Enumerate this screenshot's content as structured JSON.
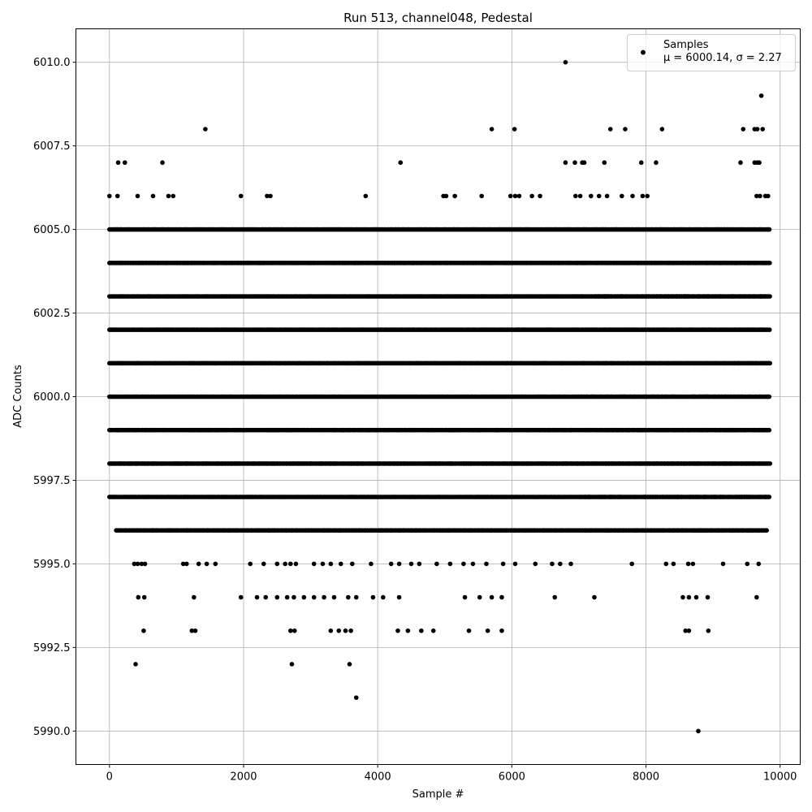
{
  "chart_data": {
    "type": "scatter",
    "title": "Run 513, channel048, Pedestal",
    "xlabel": "Sample #",
    "ylabel": "ADC Counts",
    "xlim": [
      -500,
      10300
    ],
    "ylim": [
      5989,
      6011
    ],
    "xticks": [
      0,
      2000,
      4000,
      6000,
      8000,
      10000
    ],
    "xtick_labels": [
      "0",
      "2000",
      "4000",
      "6000",
      "8000",
      "10000"
    ],
    "yticks": [
      5990.0,
      5992.5,
      5995.0,
      5997.5,
      6000.0,
      6002.5,
      6005.0,
      6007.5,
      6010.0
    ],
    "ytick_labels": [
      "5990.0",
      "5992.5",
      "5995.0",
      "5997.5",
      "6000.0",
      "6002.5",
      "6005.0",
      "6007.5",
      "6010.0"
    ],
    "grid": true,
    "legend_position": "top-right",
    "legend": {
      "series_label": "Samples",
      "stats_label": "μ = 6000.14, σ = 2.27"
    },
    "marker_color": "#000000",
    "series": [
      {
        "name": "Samples",
        "x_range": [
          0,
          9850
        ],
        "level_spans": [
          {
            "y": 6000,
            "from": 0,
            "to": 9850
          },
          {
            "y": 6001,
            "from": 0,
            "to": 9850
          },
          {
            "y": 6002,
            "from": 0,
            "to": 9850
          },
          {
            "y": 5999,
            "from": 0,
            "to": 9850
          },
          {
            "y": 6003,
            "from": 0,
            "to": 9850
          },
          {
            "y": 5998,
            "from": 0,
            "to": 9850
          },
          {
            "y": 6004,
            "from": 0,
            "to": 9850
          },
          {
            "y": 5997,
            "from": 0,
            "to": 9850
          },
          {
            "y": 6005,
            "from": 0,
            "to": 9850
          },
          {
            "y": 5996,
            "from": 100,
            "to": 9800
          }
        ],
        "points": [
          [
            0,
            6006
          ],
          [
            120,
            6006
          ],
          [
            420,
            6006
          ],
          [
            650,
            6006
          ],
          [
            880,
            6006
          ],
          [
            950,
            6006
          ],
          [
            1960,
            6006
          ],
          [
            2350,
            6006
          ],
          [
            2400,
            6006
          ],
          [
            3820,
            6006
          ],
          [
            4980,
            6006
          ],
          [
            5020,
            6006
          ],
          [
            5150,
            6006
          ],
          [
            5550,
            6006
          ],
          [
            5980,
            6006
          ],
          [
            6050,
            6006
          ],
          [
            6110,
            6006
          ],
          [
            6300,
            6006
          ],
          [
            6420,
            6006
          ],
          [
            6950,
            6006
          ],
          [
            7020,
            6006
          ],
          [
            7180,
            6006
          ],
          [
            7300,
            6006
          ],
          [
            7420,
            6006
          ],
          [
            7640,
            6006
          ],
          [
            7800,
            6006
          ],
          [
            7950,
            6006
          ],
          [
            8020,
            6006
          ],
          [
            9650,
            6006
          ],
          [
            9700,
            6006
          ],
          [
            9780,
            6006
          ],
          [
            9820,
            6006
          ],
          [
            130,
            6007
          ],
          [
            230,
            6007
          ],
          [
            790,
            6007
          ],
          [
            4340,
            6007
          ],
          [
            6800,
            6007
          ],
          [
            6940,
            6007
          ],
          [
            7050,
            6007
          ],
          [
            7080,
            6007
          ],
          [
            7380,
            6007
          ],
          [
            7930,
            6007
          ],
          [
            8150,
            6007
          ],
          [
            9410,
            6007
          ],
          [
            9620,
            6007
          ],
          [
            9660,
            6007
          ],
          [
            9690,
            6007
          ],
          [
            1430,
            6008
          ],
          [
            5700,
            6008
          ],
          [
            6040,
            6008
          ],
          [
            7470,
            6008
          ],
          [
            7690,
            6008
          ],
          [
            8240,
            6008
          ],
          [
            9450,
            6008
          ],
          [
            9620,
            6008
          ],
          [
            9660,
            6008
          ],
          [
            9740,
            6008
          ],
          [
            6800,
            6010
          ],
          [
            9720,
            6009
          ],
          [
            370,
            5995
          ],
          [
            420,
            5995
          ],
          [
            480,
            5995
          ],
          [
            530,
            5995
          ],
          [
            1100,
            5995
          ],
          [
            1150,
            5995
          ],
          [
            1330,
            5995
          ],
          [
            1450,
            5995
          ],
          [
            1580,
            5995
          ],
          [
            2100,
            5995
          ],
          [
            2300,
            5995
          ],
          [
            2500,
            5995
          ],
          [
            2620,
            5995
          ],
          [
            2700,
            5995
          ],
          [
            2780,
            5995
          ],
          [
            3050,
            5995
          ],
          [
            3180,
            5995
          ],
          [
            3300,
            5995
          ],
          [
            3450,
            5995
          ],
          [
            3620,
            5995
          ],
          [
            3900,
            5995
          ],
          [
            4200,
            5995
          ],
          [
            4320,
            5995
          ],
          [
            4500,
            5995
          ],
          [
            4620,
            5995
          ],
          [
            4880,
            5995
          ],
          [
            5080,
            5995
          ],
          [
            5280,
            5995
          ],
          [
            5420,
            5995
          ],
          [
            5620,
            5995
          ],
          [
            5870,
            5995
          ],
          [
            6050,
            5995
          ],
          [
            6350,
            5995
          ],
          [
            6600,
            5995
          ],
          [
            6720,
            5995
          ],
          [
            6880,
            5995
          ],
          [
            7790,
            5995
          ],
          [
            8300,
            5995
          ],
          [
            8410,
            5995
          ],
          [
            8630,
            5995
          ],
          [
            8700,
            5995
          ],
          [
            9150,
            5995
          ],
          [
            9510,
            5995
          ],
          [
            9680,
            5995
          ],
          [
            430,
            5994
          ],
          [
            520,
            5994
          ],
          [
            1260,
            5994
          ],
          [
            1960,
            5994
          ],
          [
            2200,
            5994
          ],
          [
            2330,
            5994
          ],
          [
            2500,
            5994
          ],
          [
            2650,
            5994
          ],
          [
            2750,
            5994
          ],
          [
            2900,
            5994
          ],
          [
            3050,
            5994
          ],
          [
            3200,
            5994
          ],
          [
            3350,
            5994
          ],
          [
            3560,
            5994
          ],
          [
            3680,
            5994
          ],
          [
            3930,
            5994
          ],
          [
            4080,
            5994
          ],
          [
            4320,
            5994
          ],
          [
            5300,
            5994
          ],
          [
            5520,
            5994
          ],
          [
            5700,
            5994
          ],
          [
            5850,
            5994
          ],
          [
            6640,
            5994
          ],
          [
            7230,
            5994
          ],
          [
            8550,
            5994
          ],
          [
            8640,
            5994
          ],
          [
            8750,
            5994
          ],
          [
            8920,
            5994
          ],
          [
            9650,
            5994
          ],
          [
            510,
            5993
          ],
          [
            1230,
            5993
          ],
          [
            1280,
            5993
          ],
          [
            2700,
            5993
          ],
          [
            2760,
            5993
          ],
          [
            3300,
            5993
          ],
          [
            3420,
            5993
          ],
          [
            3520,
            5993
          ],
          [
            3600,
            5993
          ],
          [
            4300,
            5993
          ],
          [
            4450,
            5993
          ],
          [
            4650,
            5993
          ],
          [
            4830,
            5993
          ],
          [
            5360,
            5993
          ],
          [
            5640,
            5993
          ],
          [
            5850,
            5993
          ],
          [
            8590,
            5993
          ],
          [
            8640,
            5993
          ],
          [
            8930,
            5993
          ],
          [
            390,
            5992
          ],
          [
            2720,
            5992
          ],
          [
            3580,
            5992
          ],
          [
            3680,
            5991
          ],
          [
            8780,
            5990
          ]
        ]
      }
    ]
  }
}
